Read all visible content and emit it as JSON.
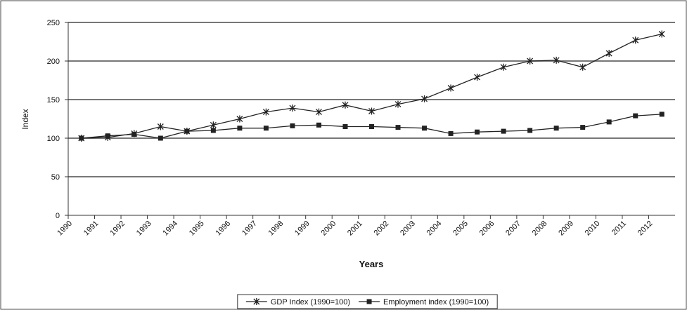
{
  "chart_data": {
    "type": "line",
    "x_label": "Years",
    "y_label": "Index",
    "categories": [
      "1990",
      "1991",
      "1992",
      "1993",
      "1994",
      "1995",
      "1996",
      "1997",
      "1998",
      "1999",
      "2000",
      "2001",
      "2002",
      "2003",
      "2004",
      "2005",
      "2006",
      "2007",
      "2008",
      "2009",
      "2010",
      "2011",
      "2012"
    ],
    "series": [
      {
        "name": "GDP Index (1990=100)",
        "color": "#222222",
        "marker": "star",
        "values": [
          100,
          101,
          106,
          115,
          109,
          117,
          125,
          134,
          139,
          134,
          143,
          135,
          144,
          151,
          165,
          179,
          192,
          200,
          201,
          192,
          210,
          227,
          235
        ]
      },
      {
        "name": "Employment index (1990=100)",
        "color": "#222222",
        "marker": "square",
        "values": [
          100,
          103,
          105,
          100,
          109,
          110,
          113,
          113,
          116,
          117,
          115,
          115,
          114,
          113,
          106,
          108,
          109,
          110,
          113,
          114,
          121,
          129,
          131
        ]
      }
    ],
    "ylim": [
      0,
      250
    ],
    "yticks": [
      0,
      50,
      100,
      150,
      200,
      250
    ],
    "grid": true,
    "legend": "bottom"
  }
}
